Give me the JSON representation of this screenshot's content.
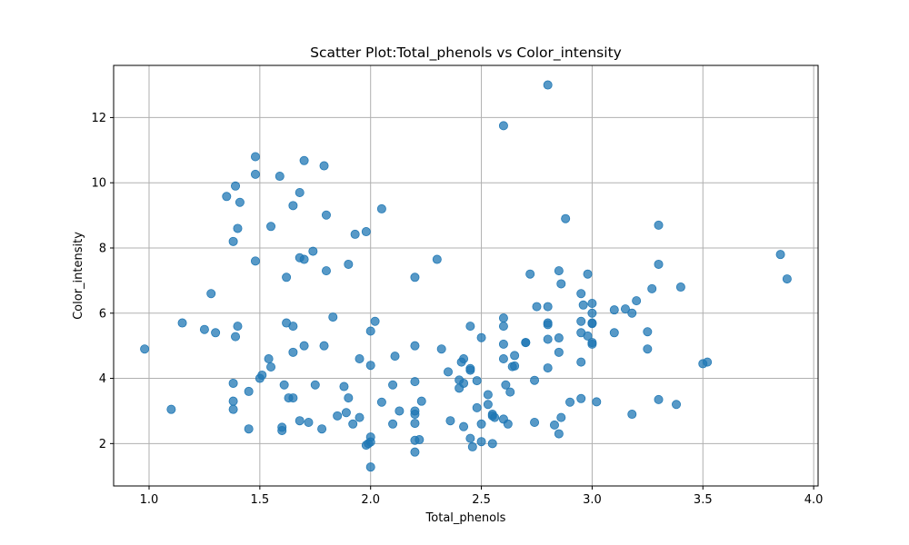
{
  "chart_data": {
    "type": "scatter",
    "title": "Scatter Plot:Total_phenols vs Color_intensity",
    "xlabel": "Total_phenols",
    "ylabel": "Color_intensity",
    "xlim": [
      0.84,
      4.02
    ],
    "ylim": [
      0.7,
      13.6
    ],
    "xticks": [
      "1.0",
      "1.5",
      "2.0",
      "2.5",
      "3.0",
      "3.5",
      "4.0"
    ],
    "yticks": [
      "2",
      "4",
      "6",
      "8",
      "10",
      "12"
    ],
    "grid": true,
    "legend": "none",
    "point_color": "#1f77b4",
    "point_alpha": 0.75,
    "points": [
      [
        0.98,
        4.9
      ],
      [
        1.1,
        3.05
      ],
      [
        1.15,
        5.7
      ],
      [
        1.25,
        5.5
      ],
      [
        1.28,
        6.6
      ],
      [
        1.3,
        5.4
      ],
      [
        1.35,
        9.58
      ],
      [
        1.38,
        8.2
      ],
      [
        1.38,
        3.85
      ],
      [
        1.38,
        3.3
      ],
      [
        1.38,
        3.05
      ],
      [
        1.39,
        9.9
      ],
      [
        1.39,
        5.28
      ],
      [
        1.4,
        8.6
      ],
      [
        1.4,
        5.6
      ],
      [
        1.41,
        9.4
      ],
      [
        1.45,
        3.6
      ],
      [
        1.45,
        2.45
      ],
      [
        1.48,
        10.8
      ],
      [
        1.48,
        10.26
      ],
      [
        1.48,
        7.6
      ],
      [
        1.5,
        4.0
      ],
      [
        1.51,
        4.1
      ],
      [
        1.54,
        4.6
      ],
      [
        1.55,
        8.66
      ],
      [
        1.55,
        4.35
      ],
      [
        1.59,
        10.2
      ],
      [
        1.6,
        2.5
      ],
      [
        1.6,
        2.4
      ],
      [
        1.61,
        3.8
      ],
      [
        1.62,
        7.1
      ],
      [
        1.62,
        5.7
      ],
      [
        1.63,
        3.4
      ],
      [
        1.65,
        9.3
      ],
      [
        1.65,
        5.6
      ],
      [
        1.65,
        4.8
      ],
      [
        1.65,
        3.4
      ],
      [
        1.68,
        9.7
      ],
      [
        1.68,
        7.7
      ],
      [
        1.68,
        2.7
      ],
      [
        1.7,
        10.68
      ],
      [
        1.7,
        7.65
      ],
      [
        1.7,
        5.0
      ],
      [
        1.72,
        2.65
      ],
      [
        1.74,
        7.9
      ],
      [
        1.75,
        3.8
      ],
      [
        1.78,
        2.45
      ],
      [
        1.79,
        10.52
      ],
      [
        1.8,
        9.01
      ],
      [
        1.8,
        7.3
      ],
      [
        1.79,
        5.0
      ],
      [
        1.83,
        5.88
      ],
      [
        1.85,
        2.85
      ],
      [
        1.88,
        3.75
      ],
      [
        1.89,
        2.95
      ],
      [
        1.9,
        7.5
      ],
      [
        1.9,
        3.4
      ],
      [
        1.92,
        2.6
      ],
      [
        1.93,
        8.42
      ],
      [
        1.95,
        4.6
      ],
      [
        1.95,
        2.8
      ],
      [
        1.98,
        8.5
      ],
      [
        1.98,
        1.95
      ],
      [
        1.99,
        2.0
      ],
      [
        2.0,
        5.45
      ],
      [
        2.0,
        4.4
      ],
      [
        2.0,
        2.2
      ],
      [
        2.0,
        2.05
      ],
      [
        2.0,
        1.28
      ],
      [
        2.02,
        5.75
      ],
      [
        2.05,
        9.2
      ],
      [
        2.05,
        3.27
      ],
      [
        2.1,
        3.8
      ],
      [
        2.1,
        2.6
      ],
      [
        2.11,
        4.68
      ],
      [
        2.13,
        3.0
      ],
      [
        2.2,
        7.1
      ],
      [
        2.2,
        5.0
      ],
      [
        2.2,
        3.9
      ],
      [
        2.2,
        3.0
      ],
      [
        2.2,
        2.9
      ],
      [
        2.2,
        2.62
      ],
      [
        2.2,
        2.1
      ],
      [
        2.2,
        1.74
      ],
      [
        2.22,
        2.12
      ],
      [
        2.23,
        3.3
      ],
      [
        2.3,
        7.65
      ],
      [
        2.32,
        4.9
      ],
      [
        2.35,
        4.2
      ],
      [
        2.36,
        2.7
      ],
      [
        2.4,
        3.95
      ],
      [
        2.4,
        3.7
      ],
      [
        2.41,
        4.5
      ],
      [
        2.42,
        4.6
      ],
      [
        2.42,
        3.85
      ],
      [
        2.42,
        2.52
      ],
      [
        2.45,
        5.6
      ],
      [
        2.45,
        4.3
      ],
      [
        2.45,
        4.25
      ],
      [
        2.45,
        2.16
      ],
      [
        2.46,
        1.9
      ],
      [
        2.48,
        3.93
      ],
      [
        2.48,
        3.1
      ],
      [
        2.5,
        5.25
      ],
      [
        2.5,
        2.6
      ],
      [
        2.5,
        2.06
      ],
      [
        2.53,
        3.5
      ],
      [
        2.53,
        3.2
      ],
      [
        2.55,
        2.9
      ],
      [
        2.55,
        2.85
      ],
      [
        2.56,
        2.8
      ],
      [
        2.55,
        2.0
      ],
      [
        2.6,
        11.75
      ],
      [
        2.6,
        5.85
      ],
      [
        2.6,
        5.6
      ],
      [
        2.6,
        5.05
      ],
      [
        2.6,
        4.6
      ],
      [
        2.61,
        3.8
      ],
      [
        2.6,
        2.75
      ],
      [
        2.62,
        2.6
      ],
      [
        2.63,
        3.58
      ],
      [
        2.64,
        4.36
      ],
      [
        2.65,
        4.38
      ],
      [
        2.65,
        4.7
      ],
      [
        2.7,
        5.1
      ],
      [
        2.7,
        5.1
      ],
      [
        2.72,
        7.2
      ],
      [
        2.74,
        3.94
      ],
      [
        2.74,
        2.65
      ],
      [
        2.75,
        6.2
      ],
      [
        2.8,
        13.0
      ],
      [
        2.8,
        6.2
      ],
      [
        2.8,
        5.7
      ],
      [
        2.8,
        5.65
      ],
      [
        2.8,
        5.2
      ],
      [
        2.8,
        4.32
      ],
      [
        2.83,
        2.57
      ],
      [
        2.85,
        7.3
      ],
      [
        2.85,
        5.24
      ],
      [
        2.85,
        4.8
      ],
      [
        2.85,
        2.3
      ],
      [
        2.86,
        6.9
      ],
      [
        2.86,
        2.8
      ],
      [
        2.88,
        8.9
      ],
      [
        2.9,
        3.27
      ],
      [
        2.95,
        6.6
      ],
      [
        2.95,
        5.75
      ],
      [
        2.95,
        5.4
      ],
      [
        2.95,
        4.5
      ],
      [
        2.95,
        3.38
      ],
      [
        2.96,
        6.25
      ],
      [
        2.98,
        7.2
      ],
      [
        2.98,
        5.3
      ],
      [
        3.0,
        6.3
      ],
      [
        3.0,
        6.0
      ],
      [
        3.0,
        5.7
      ],
      [
        3.0,
        5.68
      ],
      [
        3.0,
        5.1
      ],
      [
        3.0,
        5.05
      ],
      [
        3.02,
        3.28
      ],
      [
        3.1,
        6.1
      ],
      [
        3.1,
        5.4
      ],
      [
        3.15,
        6.13
      ],
      [
        3.18,
        6.0
      ],
      [
        3.18,
        2.9
      ],
      [
        3.2,
        6.38
      ],
      [
        3.25,
        5.43
      ],
      [
        3.25,
        4.9
      ],
      [
        3.27,
        6.75
      ],
      [
        3.3,
        8.7
      ],
      [
        3.3,
        7.5
      ],
      [
        3.3,
        3.35
      ],
      [
        3.38,
        3.2
      ],
      [
        3.4,
        6.8
      ],
      [
        3.5,
        4.45
      ],
      [
        3.52,
        4.5
      ],
      [
        3.85,
        7.8
      ],
      [
        3.88,
        7.05
      ]
    ]
  }
}
